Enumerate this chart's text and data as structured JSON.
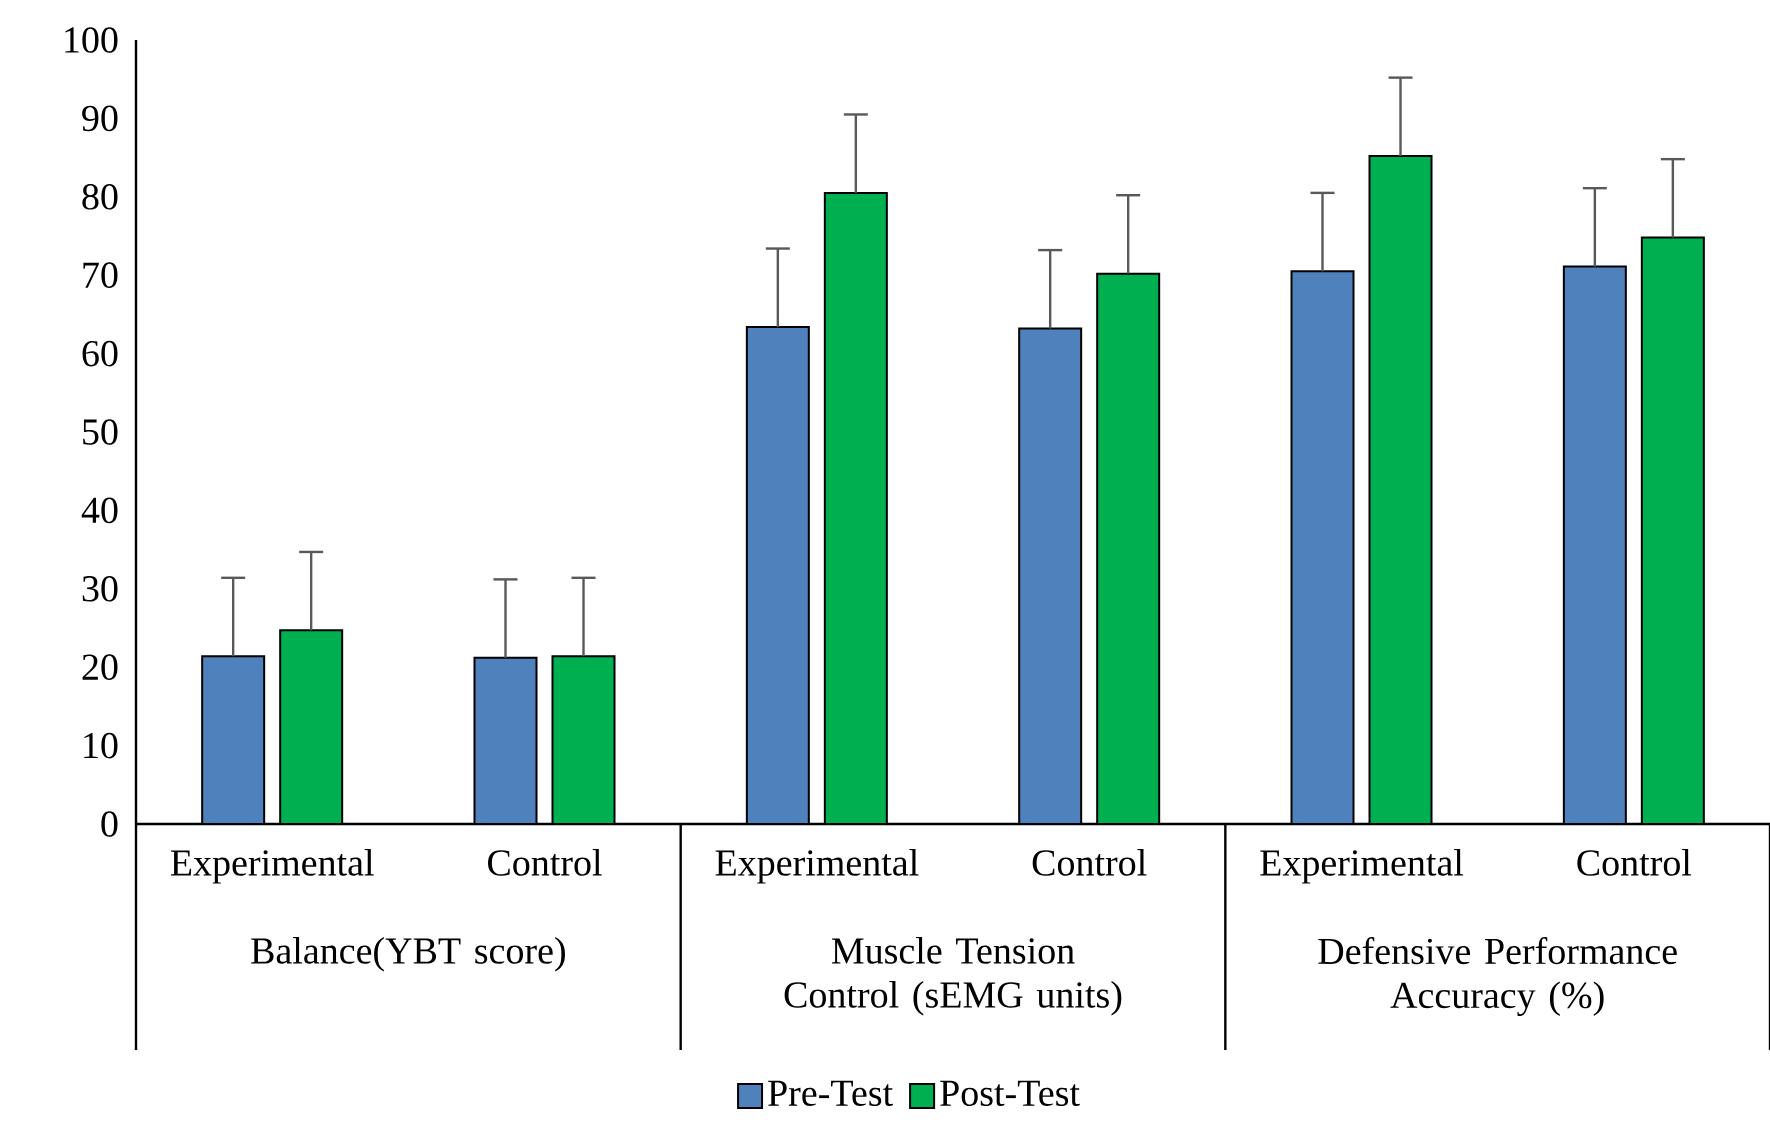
{
  "chart_data": {
    "type": "bar",
    "categories": [
      "Experimental",
      "Control",
      "Experimental",
      "Control",
      "Experimental",
      "Control"
    ],
    "series": [
      {
        "name": "Pre-Test",
        "color": "#4f81bd",
        "values": [
          21.4,
          21.2,
          63.4,
          63.2,
          70.5,
          71.1
        ],
        "errors": [
          10,
          10,
          10,
          10,
          10,
          10
        ]
      },
      {
        "name": "Post-Test",
        "color": "#00b050",
        "values": [
          24.7,
          21.4,
          80.5,
          70.2,
          85.2,
          74.8
        ],
        "errors": [
          10,
          10,
          10,
          10,
          10,
          10
        ]
      }
    ],
    "annotations": [
      "Balance(YBT score)",
      "Muscle Tension Control (sEMG units)",
      "Defensive Performance Accuracy (%)"
    ],
    "ylim": [
      0,
      100
    ],
    "yticks": [
      0,
      10,
      20,
      30,
      40,
      50,
      60,
      70,
      80,
      90,
      100
    ],
    "grid": false,
    "legend": "bottom"
  }
}
